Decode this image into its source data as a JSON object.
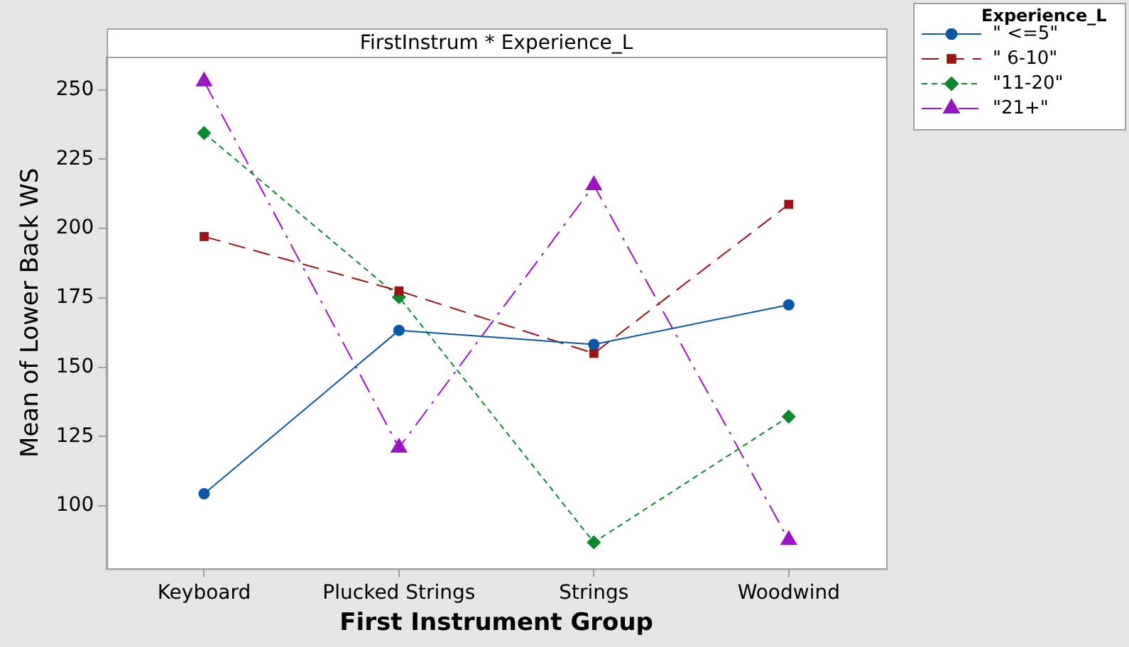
{
  "chart_data": {
    "type": "line",
    "title": "FirstInstrum * Experience_L",
    "xlabel": "First Instrument Group",
    "ylabel": "Mean of Lower Back WS",
    "legend_title": "Experience_L",
    "legend": "top right",
    "categories": [
      "Keyboard",
      "Plucked Strings",
      "Strings",
      "Woodwind"
    ],
    "series": [
      {
        "name": "\" <=5\"",
        "color": "#0a56a8",
        "marker": "circle",
        "line_style": "solid",
        "values": [
          104.4,
          163.3,
          158.2,
          172.5
        ]
      },
      {
        "name": "\" 6-10\"",
        "color": "#9b1414",
        "marker": "square",
        "line_style": "dashed",
        "values": [
          197.1,
          177.5,
          155.0,
          208.7
        ]
      },
      {
        "name": "\"11-20\"",
        "color": "#0a8a2a",
        "marker": "diamond",
        "line_style": "dotted",
        "values": [
          234.4,
          175.3,
          86.9,
          132.2
        ]
      },
      {
        "name": "\"21+\"",
        "color": "#9a14c4",
        "marker": "triangle",
        "line_style": "dashdot",
        "values": [
          253,
          121,
          215.6,
          87.7
        ]
      }
    ],
    "ylim": [
      77.4,
      261.9
    ],
    "yticks": [
      100,
      125,
      150,
      175,
      200,
      225,
      250
    ]
  }
}
